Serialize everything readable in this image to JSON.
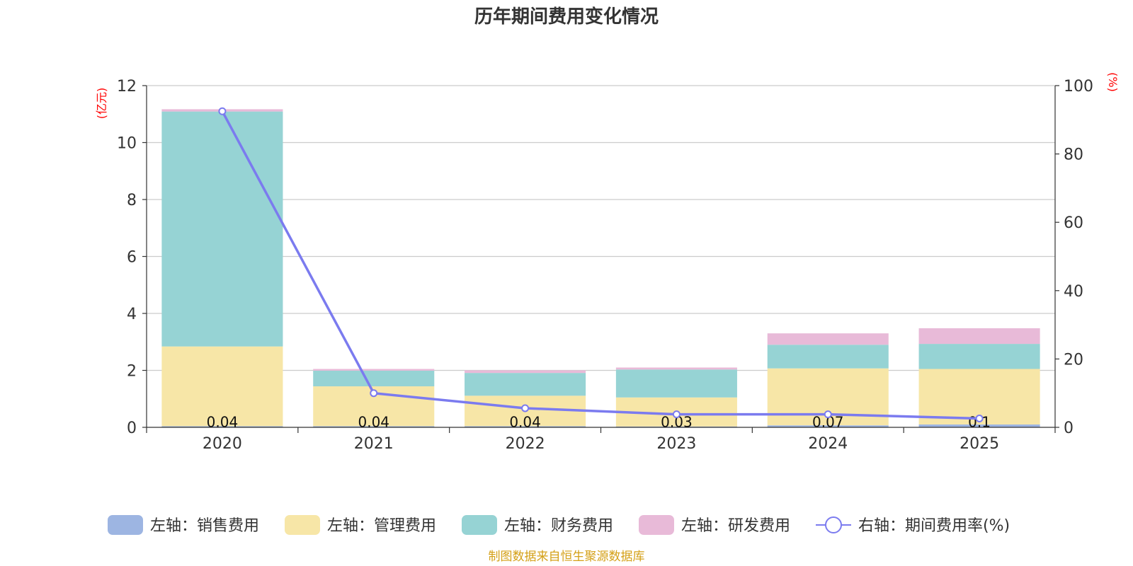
{
  "chart_data": {
    "type": "bar",
    "title": "历年期间费用变化情况",
    "categories": [
      "2020",
      "2021",
      "2022",
      "2023",
      "2024",
      "2025"
    ],
    "left_axis": {
      "unit": "(亿元)",
      "ylim": [
        0,
        12
      ],
      "ticks": [
        "0",
        "2",
        "4",
        "6",
        "8",
        "10",
        "12"
      ]
    },
    "right_axis": {
      "unit": "(%)",
      "ylim": [
        0,
        100
      ],
      "ticks": [
        "0",
        "20",
        "40",
        "60",
        "80",
        "100"
      ]
    },
    "series": [
      {
        "name": "左轴：销售费用",
        "axis": "left",
        "kind": "bar",
        "color": "#9db5e2",
        "values": [
          0.04,
          0.04,
          0.04,
          0.03,
          0.07,
          0.1
        ]
      },
      {
        "name": "左轴：管理费用",
        "axis": "left",
        "kind": "bar",
        "color": "#f7e6a7",
        "values": [
          2.8,
          1.4,
          1.07,
          1.02,
          2.0,
          1.95
        ]
      },
      {
        "name": "左轴：财务费用",
        "axis": "left",
        "kind": "bar",
        "color": "#96d3d4",
        "values": [
          8.25,
          0.55,
          0.8,
          0.98,
          0.83,
          0.88
        ]
      },
      {
        "name": "左轴：研发费用",
        "axis": "left",
        "kind": "bar",
        "color": "#e8bad8",
        "values": [
          0.08,
          0.06,
          0.09,
          0.07,
          0.4,
          0.55
        ]
      },
      {
        "name": "右轴：期间费用率(%)",
        "axis": "right",
        "kind": "line",
        "color": "#7b7bef",
        "values": [
          92.5,
          10.0,
          5.6,
          3.8,
          3.8,
          2.6
        ]
      }
    ],
    "bar_labels": [
      "0.04",
      "0.04",
      "0.04",
      "0.03",
      "0.07",
      "0.1"
    ],
    "legend_position": "bottom",
    "grid": true
  },
  "colors": {
    "unit": "#ff0000",
    "footer": "#d4a017",
    "axis": "#333333",
    "grid": "#cccccc"
  },
  "footer": "制图数据来自恒生聚源数据库"
}
